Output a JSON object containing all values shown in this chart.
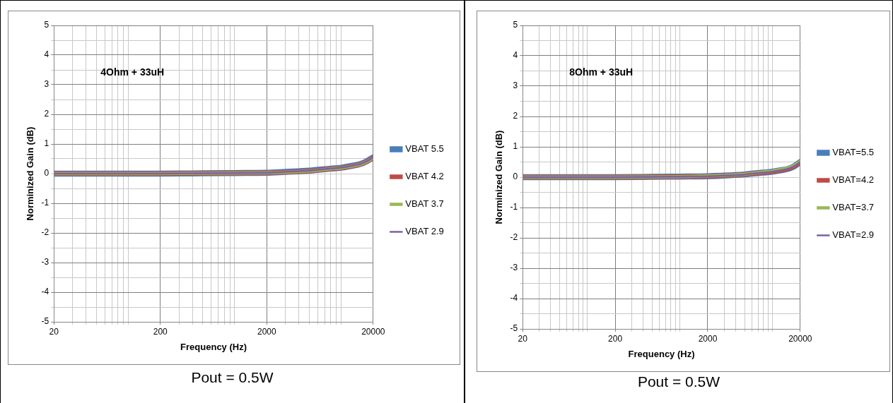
{
  "chart_data": [
    {
      "type": "line",
      "annotations": [
        "4Ohm + 33uH",
        "Pout = 0.5W"
      ],
      "xlabel": "Frequency (Hz)",
      "ylabel": "Norminized Gain (dB)",
      "log": "x",
      "grid": true,
      "legend": "right",
      "marker": "none",
      "x": [
        20,
        50,
        100,
        200,
        500,
        1000,
        2000,
        3000,
        5000,
        8000,
        10000,
        12000,
        15000,
        17000,
        20000
      ],
      "series": [
        {
          "name": "VBAT 5.5",
          "color": "#4a7ebb",
          "values": [
            0,
            0,
            0,
            0,
            0.01,
            0.02,
            0.03,
            0.06,
            0.1,
            0.17,
            0.2,
            0.25,
            0.32,
            0.4,
            0.55
          ]
        },
        {
          "name": "VBAT 4.2",
          "color": "#be4b48",
          "values": [
            0,
            0,
            0,
            0,
            0.01,
            0.02,
            0.03,
            0.05,
            0.09,
            0.16,
            0.19,
            0.24,
            0.31,
            0.39,
            0.53
          ]
        },
        {
          "name": "VBAT 3.7",
          "color": "#98b954",
          "values": [
            0,
            0,
            0,
            0,
            0.01,
            0.02,
            0.03,
            0.05,
            0.09,
            0.16,
            0.19,
            0.24,
            0.31,
            0.39,
            0.53
          ]
        },
        {
          "name": "VBAT 2.9",
          "color": "#7d60a0",
          "values": [
            0,
            0,
            0,
            0,
            0.01,
            0.02,
            0.03,
            0.06,
            0.1,
            0.17,
            0.2,
            0.25,
            0.32,
            0.4,
            0.55
          ]
        }
      ],
      "xlim": [
        20,
        20000
      ],
      "xticks": [
        20,
        {
          "value": 30,
          "label": null
        },
        {
          "value": 40,
          "label": null
        },
        {
          "value": 50,
          "label": null
        },
        {
          "value": 60,
          "label": null
        },
        {
          "value": 70,
          "label": null
        },
        {
          "value": 80,
          "label": null
        },
        {
          "value": 90,
          "label": null
        },
        {
          "value": 100,
          "label": null
        },
        200,
        {
          "value": 300,
          "label": null
        },
        {
          "value": 400,
          "label": null
        },
        {
          "value": 500,
          "label": null
        },
        {
          "value": 600,
          "label": null
        },
        {
          "value": 700,
          "label": null
        },
        {
          "value": 800,
          "label": null
        },
        {
          "value": 900,
          "label": null
        },
        {
          "value": 1000,
          "label": null
        },
        2000,
        {
          "value": 3000,
          "label": null
        },
        {
          "value": 4000,
          "label": null
        },
        {
          "value": 5000,
          "label": null
        },
        {
          "value": 6000,
          "label": null
        },
        {
          "value": 7000,
          "label": null
        },
        {
          "value": 8000,
          "label": null
        },
        {
          "value": 9000,
          "label": null
        },
        {
          "value": 10000,
          "label": null
        },
        20000
      ],
      "ylim": [
        -5,
        5
      ],
      "yticks": [
        -5,
        {
          "value": -4.5,
          "label": null
        },
        -4,
        {
          "value": -3.5,
          "label": null
        },
        -3,
        {
          "value": -2.5,
          "label": null
        },
        -2,
        {
          "value": -1.5,
          "label": null
        },
        -1,
        {
          "value": -0.5,
          "label": null
        },
        0,
        {
          "value": 0.5,
          "label": null
        },
        1,
        {
          "value": 1.5,
          "label": null
        },
        2,
        {
          "value": 2.5,
          "label": null
        },
        3,
        {
          "value": 3.5,
          "label": null
        },
        4,
        {
          "value": 4.5,
          "label": null
        },
        5
      ]
    },
    {
      "type": "line",
      "annotations": [
        "8Ohm + 33uH",
        "Pout = 0.5W"
      ],
      "xlabel": "Frequency (Hz)",
      "ylabel": "Norminized Gain (dB)",
      "log": "x",
      "grid": true,
      "legend": "right",
      "marker": "none",
      "x": [
        20,
        50,
        100,
        200,
        500,
        1000,
        2000,
        3000,
        5000,
        8000,
        10000,
        12000,
        15000,
        17000,
        20000
      ],
      "series": [
        {
          "name": "VBAT=5.5",
          "color": "#4a7ebb",
          "values": [
            0,
            0,
            0,
            0,
            0.01,
            0.02,
            0.03,
            0.05,
            0.09,
            0.15,
            0.18,
            0.22,
            0.28,
            0.35,
            0.5
          ]
        },
        {
          "name": "VBAT=4.2",
          "color": "#be4b48",
          "values": [
            0,
            0,
            0,
            0,
            0.01,
            0.02,
            0.03,
            0.05,
            0.09,
            0.15,
            0.18,
            0.22,
            0.28,
            0.35,
            0.5
          ]
        },
        {
          "name": "VBAT=3.7",
          "color": "#98b954",
          "values": [
            0,
            0,
            0,
            0,
            0.01,
            0.02,
            0.04,
            0.06,
            0.1,
            0.17,
            0.2,
            0.25,
            0.31,
            0.38,
            0.52
          ]
        },
        {
          "name": "VBAT=2.9",
          "color": "#7d60a0",
          "values": [
            0,
            0,
            0,
            0,
            0.01,
            0.02,
            0.03,
            0.05,
            0.09,
            0.15,
            0.18,
            0.22,
            0.28,
            0.35,
            0.5
          ]
        }
      ],
      "xlim": [
        20,
        20000
      ],
      "xticks": [
        20,
        {
          "value": 30,
          "label": null
        },
        {
          "value": 40,
          "label": null
        },
        {
          "value": 50,
          "label": null
        },
        {
          "value": 60,
          "label": null
        },
        {
          "value": 70,
          "label": null
        },
        {
          "value": 80,
          "label": null
        },
        {
          "value": 90,
          "label": null
        },
        {
          "value": 100,
          "label": null
        },
        200,
        {
          "value": 300,
          "label": null
        },
        {
          "value": 400,
          "label": null
        },
        {
          "value": 500,
          "label": null
        },
        {
          "value": 600,
          "label": null
        },
        {
          "value": 700,
          "label": null
        },
        {
          "value": 800,
          "label": null
        },
        {
          "value": 900,
          "label": null
        },
        {
          "value": 1000,
          "label": null
        },
        2000,
        {
          "value": 3000,
          "label": null
        },
        {
          "value": 4000,
          "label": null
        },
        {
          "value": 5000,
          "label": null
        },
        {
          "value": 6000,
          "label": null
        },
        {
          "value": 7000,
          "label": null
        },
        {
          "value": 8000,
          "label": null
        },
        {
          "value": 9000,
          "label": null
        },
        {
          "value": 10000,
          "label": null
        },
        20000
      ],
      "ylim": [
        -5,
        5
      ],
      "yticks": [
        -5,
        {
          "value": -4.5,
          "label": null
        },
        -4,
        {
          "value": -3.5,
          "label": null
        },
        -3,
        {
          "value": -2.5,
          "label": null
        },
        -2,
        {
          "value": -1.5,
          "label": null
        },
        -1,
        {
          "value": -0.5,
          "label": null
        },
        0,
        {
          "value": 0.5,
          "label": null
        },
        1,
        {
          "value": 1.5,
          "label": null
        },
        2,
        {
          "value": 2.5,
          "label": null
        },
        3,
        {
          "value": 3.5,
          "label": null
        },
        4,
        {
          "value": 4.5,
          "label": null
        },
        5
      ]
    }
  ]
}
